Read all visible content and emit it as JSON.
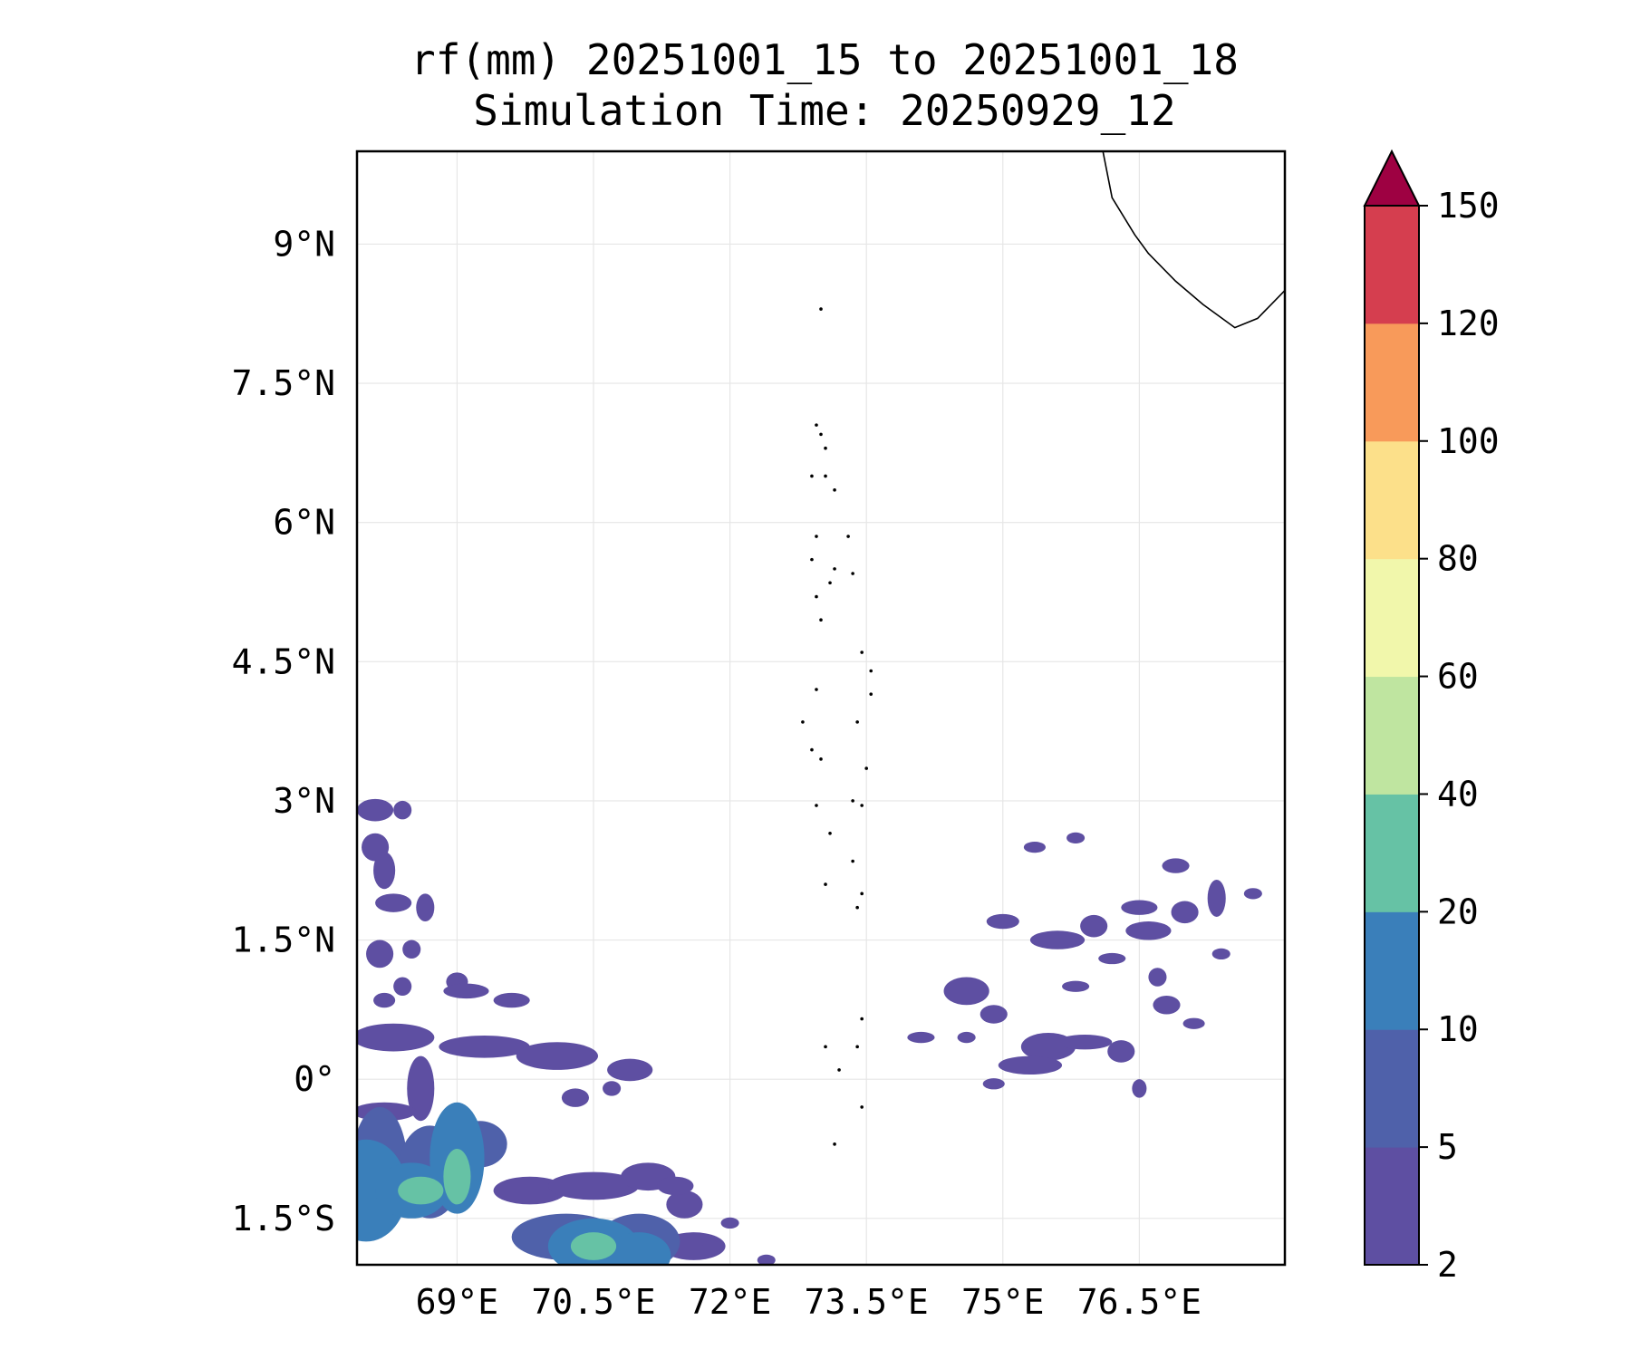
{
  "title": {
    "line1": "rf(mm) 20251001_15 to 20251001_18",
    "line2": "Simulation Time: 20250929_12"
  },
  "map": {
    "lon_range": [
      67.9,
      78.1
    ],
    "lat_range": [
      -2.0,
      10.0
    ],
    "lat_ticks": [
      {
        "value": 9,
        "label": "9°N"
      },
      {
        "value": 7.5,
        "label": "7.5°N"
      },
      {
        "value": 6,
        "label": "6°N"
      },
      {
        "value": 4.5,
        "label": "4.5°N"
      },
      {
        "value": 3,
        "label": "3°N"
      },
      {
        "value": 1.5,
        "label": "1.5°N"
      },
      {
        "value": 0,
        "label": "0°"
      },
      {
        "value": -1.5,
        "label": "1.5°S"
      }
    ],
    "lon_ticks": [
      {
        "value": 69,
        "label": "69°E"
      },
      {
        "value": 70.5,
        "label": "70.5°E"
      },
      {
        "value": 72,
        "label": "72°E"
      },
      {
        "value": 73.5,
        "label": "73.5°E"
      },
      {
        "value": 75,
        "label": "75°E"
      },
      {
        "value": 76.5,
        "label": "76.5°E"
      }
    ],
    "grid": true,
    "coastline_india": [
      [
        76.1,
        10.0
      ],
      [
        76.2,
        9.5
      ],
      [
        76.45,
        9.1
      ],
      [
        76.6,
        8.9
      ],
      [
        76.9,
        8.6
      ],
      [
        77.2,
        8.35
      ],
      [
        77.55,
        8.1
      ],
      [
        77.8,
        8.2
      ],
      [
        78.1,
        8.5
      ]
    ],
    "islands": [
      [
        73.0,
        8.3
      ],
      [
        72.95,
        7.05
      ],
      [
        73.0,
        6.95
      ],
      [
        73.05,
        6.8
      ],
      [
        72.9,
        6.5
      ],
      [
        73.05,
        6.5
      ],
      [
        73.15,
        6.35
      ],
      [
        72.95,
        5.85
      ],
      [
        72.9,
        5.6
      ],
      [
        73.3,
        5.85
      ],
      [
        73.15,
        5.5
      ],
      [
        73.35,
        5.45
      ],
      [
        72.95,
        5.2
      ],
      [
        73.1,
        5.35
      ],
      [
        73.0,
        4.95
      ],
      [
        73.45,
        4.6
      ],
      [
        73.55,
        4.4
      ],
      [
        72.95,
        4.2
      ],
      [
        73.55,
        4.15
      ],
      [
        72.8,
        3.85
      ],
      [
        72.9,
        3.55
      ],
      [
        73.0,
        3.45
      ],
      [
        73.4,
        3.85
      ],
      [
        73.5,
        3.35
      ],
      [
        73.35,
        3.0
      ],
      [
        73.45,
        2.95
      ],
      [
        72.95,
        2.95
      ],
      [
        73.1,
        2.65
      ],
      [
        73.35,
        2.35
      ],
      [
        73.05,
        2.1
      ],
      [
        73.45,
        2.0
      ],
      [
        73.4,
        1.85
      ],
      [
        73.45,
        0.65
      ],
      [
        73.05,
        0.35
      ],
      [
        73.2,
        0.1
      ],
      [
        73.4,
        0.35
      ],
      [
        73.45,
        -0.3
      ],
      [
        73.15,
        -0.7
      ]
    ]
  },
  "chart_data": {
    "type": "heatmap",
    "variable": "rf(mm)",
    "levels": [
      2,
      5,
      10,
      20,
      40,
      60,
      80,
      100,
      120,
      150
    ],
    "colors": [
      "#5e4fa2",
      "#4f61aa",
      "#3a7fba",
      "#66c2a5",
      "#bfe5a0",
      "#f1f7ab",
      "#fce08a",
      "#f89a5a",
      "#d53e4f"
    ],
    "extend_color": "#9e0142",
    "extend": "max",
    "colorbar_labels": [
      "2",
      "5",
      "10",
      "20",
      "40",
      "60",
      "80",
      "100",
      "120",
      "150"
    ],
    "rain_cells": [
      {
        "lon": 68.0,
        "lat": -1.2,
        "rx": 0.45,
        "ry": 0.55,
        "level": 3
      },
      {
        "lon": 68.5,
        "lat": -1.2,
        "rx": 0.4,
        "ry": 0.3,
        "level": 3
      },
      {
        "lon": 69.0,
        "lat": -0.85,
        "rx": 0.3,
        "ry": 0.6,
        "level": 3
      },
      {
        "lon": 70.5,
        "lat": -1.8,
        "rx": 0.5,
        "ry": 0.3,
        "level": 3
      },
      {
        "lon": 71.0,
        "lat": -1.9,
        "rx": 0.35,
        "ry": 0.25,
        "level": 3
      },
      {
        "lon": 68.6,
        "lat": -1.2,
        "rx": 0.25,
        "ry": 0.15,
        "level": 4
      },
      {
        "lon": 69.0,
        "lat": -1.05,
        "rx": 0.15,
        "ry": 0.3,
        "level": 4
      },
      {
        "lon": 70.5,
        "lat": -1.8,
        "rx": 0.25,
        "ry": 0.15,
        "level": 4
      },
      {
        "lon": 68.3,
        "lat": 0.45,
        "rx": 0.45,
        "ry": 0.15,
        "level": 1
      },
      {
        "lon": 69.3,
        "lat": 0.35,
        "rx": 0.5,
        "ry": 0.12,
        "level": 1
      },
      {
        "lon": 70.1,
        "lat": 0.25,
        "rx": 0.45,
        "ry": 0.15,
        "level": 1
      },
      {
        "lon": 70.9,
        "lat": 0.1,
        "rx": 0.25,
        "ry": 0.12,
        "level": 1
      },
      {
        "lon": 68.6,
        "lat": -0.1,
        "rx": 0.15,
        "ry": 0.35,
        "level": 1
      },
      {
        "lon": 68.2,
        "lat": -0.35,
        "rx": 0.35,
        "ry": 0.1,
        "level": 1
      },
      {
        "lon": 68.15,
        "lat": -0.9,
        "rx": 0.3,
        "ry": 0.6,
        "level": 2
      },
      {
        "lon": 68.7,
        "lat": -1.0,
        "rx": 0.35,
        "ry": 0.5,
        "level": 2
      },
      {
        "lon": 69.25,
        "lat": -0.7,
        "rx": 0.3,
        "ry": 0.25,
        "level": 2
      },
      {
        "lon": 69.8,
        "lat": -1.2,
        "rx": 0.4,
        "ry": 0.15,
        "level": 1
      },
      {
        "lon": 70.5,
        "lat": -1.15,
        "rx": 0.5,
        "ry": 0.15,
        "level": 1
      },
      {
        "lon": 71.1,
        "lat": -1.05,
        "rx": 0.3,
        "ry": 0.15,
        "level": 1
      },
      {
        "lon": 71.5,
        "lat": -1.35,
        "rx": 0.2,
        "ry": 0.15,
        "level": 1
      },
      {
        "lon": 70.2,
        "lat": -1.7,
        "rx": 0.6,
        "ry": 0.25,
        "level": 2
      },
      {
        "lon": 71.0,
        "lat": -1.75,
        "rx": 0.45,
        "ry": 0.3,
        "level": 2
      },
      {
        "lon": 71.6,
        "lat": -1.8,
        "rx": 0.35,
        "ry": 0.15,
        "level": 1
      },
      {
        "lon": 68.1,
        "lat": 2.9,
        "rx": 0.2,
        "ry": 0.12,
        "level": 1
      },
      {
        "lon": 68.4,
        "lat": 2.9,
        "rx": 0.1,
        "ry": 0.1,
        "level": 1
      },
      {
        "lon": 68.1,
        "lat": 2.5,
        "rx": 0.15,
        "ry": 0.15,
        "level": 1
      },
      {
        "lon": 68.2,
        "lat": 2.25,
        "rx": 0.12,
        "ry": 0.2,
        "level": 1
      },
      {
        "lon": 68.3,
        "lat": 1.9,
        "rx": 0.2,
        "ry": 0.1,
        "level": 1
      },
      {
        "lon": 68.65,
        "lat": 1.85,
        "rx": 0.1,
        "ry": 0.15,
        "level": 1
      },
      {
        "lon": 68.15,
        "lat": 1.35,
        "rx": 0.15,
        "ry": 0.15,
        "level": 1
      },
      {
        "lon": 68.5,
        "lat": 1.4,
        "rx": 0.1,
        "ry": 0.1,
        "level": 1
      },
      {
        "lon": 68.4,
        "lat": 1.0,
        "rx": 0.1,
        "ry": 0.1,
        "level": 1
      },
      {
        "lon": 69.0,
        "lat": 1.05,
        "rx": 0.12,
        "ry": 0.1,
        "level": 1
      },
      {
        "lon": 69.1,
        "lat": 0.95,
        "rx": 0.25,
        "ry": 0.08,
        "level": 1
      },
      {
        "lon": 69.6,
        "lat": 0.85,
        "rx": 0.2,
        "ry": 0.08,
        "level": 1
      },
      {
        "lon": 68.2,
        "lat": 0.85,
        "rx": 0.12,
        "ry": 0.08,
        "level": 1
      },
      {
        "lon": 70.3,
        "lat": -0.2,
        "rx": 0.15,
        "ry": 0.1,
        "level": 1
      },
      {
        "lon": 70.7,
        "lat": -0.1,
        "rx": 0.1,
        "ry": 0.08,
        "level": 1
      },
      {
        "lon": 71.4,
        "lat": -1.15,
        "rx": 0.2,
        "ry": 0.1,
        "level": 1
      },
      {
        "lon": 72.0,
        "lat": -1.55,
        "rx": 0.1,
        "ry": 0.06,
        "level": 1
      },
      {
        "lon": 71.8,
        "lat": -1.8,
        "rx": 0.1,
        "ry": 0.06,
        "level": 1
      },
      {
        "lon": 72.4,
        "lat": -1.95,
        "rx": 0.1,
        "ry": 0.06,
        "level": 1
      },
      {
        "lon": 75.0,
        "lat": 1.7,
        "rx": 0.18,
        "ry": 0.08,
        "level": 1
      },
      {
        "lon": 74.6,
        "lat": 0.95,
        "rx": 0.25,
        "ry": 0.15,
        "level": 1
      },
      {
        "lon": 74.9,
        "lat": 0.7,
        "rx": 0.15,
        "ry": 0.1,
        "level": 1
      },
      {
        "lon": 75.5,
        "lat": 0.35,
        "rx": 0.3,
        "ry": 0.15,
        "level": 1
      },
      {
        "lon": 75.9,
        "lat": 0.4,
        "rx": 0.3,
        "ry": 0.08,
        "level": 1
      },
      {
        "lon": 75.3,
        "lat": 0.15,
        "rx": 0.35,
        "ry": 0.1,
        "level": 1
      },
      {
        "lon": 74.1,
        "lat": 0.45,
        "rx": 0.15,
        "ry": 0.06,
        "level": 1
      },
      {
        "lon": 74.6,
        "lat": 0.45,
        "rx": 0.1,
        "ry": 0.06,
        "level": 1
      },
      {
        "lon": 76.3,
        "lat": 0.3,
        "rx": 0.15,
        "ry": 0.12,
        "level": 1
      },
      {
        "lon": 75.6,
        "lat": 1.5,
        "rx": 0.3,
        "ry": 0.1,
        "level": 1
      },
      {
        "lon": 76.0,
        "lat": 1.65,
        "rx": 0.15,
        "ry": 0.12,
        "level": 1
      },
      {
        "lon": 76.5,
        "lat": 1.85,
        "rx": 0.2,
        "ry": 0.08,
        "level": 1
      },
      {
        "lon": 76.6,
        "lat": 1.6,
        "rx": 0.25,
        "ry": 0.1,
        "level": 1
      },
      {
        "lon": 77.0,
        "lat": 1.8,
        "rx": 0.15,
        "ry": 0.12,
        "level": 1
      },
      {
        "lon": 76.9,
        "lat": 2.3,
        "rx": 0.15,
        "ry": 0.08,
        "level": 1
      },
      {
        "lon": 77.35,
        "lat": 1.95,
        "rx": 0.1,
        "ry": 0.2,
        "level": 1
      },
      {
        "lon": 77.75,
        "lat": 2.0,
        "rx": 0.1,
        "ry": 0.06,
        "level": 1
      },
      {
        "lon": 77.4,
        "lat": 1.35,
        "rx": 0.1,
        "ry": 0.06,
        "level": 1
      },
      {
        "lon": 76.8,
        "lat": 0.8,
        "rx": 0.15,
        "ry": 0.1,
        "level": 1
      },
      {
        "lon": 77.1,
        "lat": 0.6,
        "rx": 0.12,
        "ry": 0.06,
        "level": 1
      },
      {
        "lon": 75.8,
        "lat": 1.0,
        "rx": 0.15,
        "ry": 0.06,
        "level": 1
      },
      {
        "lon": 76.2,
        "lat": 1.3,
        "rx": 0.15,
        "ry": 0.06,
        "level": 1
      },
      {
        "lon": 75.35,
        "lat": 2.5,
        "rx": 0.12,
        "ry": 0.06,
        "level": 1
      },
      {
        "lon": 75.8,
        "lat": 2.6,
        "rx": 0.1,
        "ry": 0.06,
        "level": 1
      },
      {
        "lon": 76.7,
        "lat": 1.1,
        "rx": 0.1,
        "ry": 0.1,
        "level": 1
      },
      {
        "lon": 76.5,
        "lat": -0.1,
        "rx": 0.08,
        "ry": 0.1,
        "level": 1
      },
      {
        "lon": 74.9,
        "lat": -0.05,
        "rx": 0.12,
        "ry": 0.06,
        "level": 1
      }
    ]
  },
  "colorbar": {
    "tick_labels": [
      "2",
      "5",
      "10",
      "20",
      "40",
      "60",
      "80",
      "100",
      "120",
      "150"
    ]
  }
}
